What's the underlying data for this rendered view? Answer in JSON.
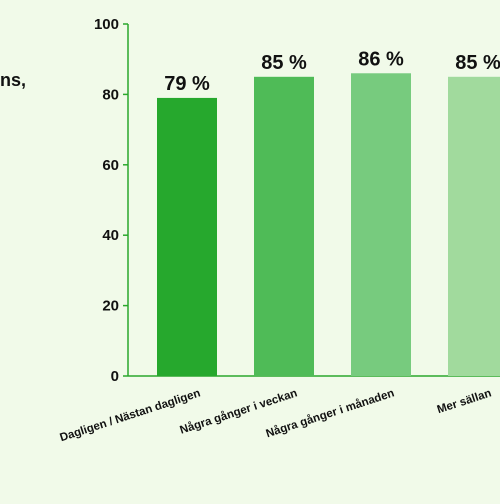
{
  "fragment_text": "ns,",
  "colors": {
    "background": "#f1fae9",
    "axis": "#2aa72c",
    "bars": [
      "#26a82d",
      "#4fbb57",
      "#77cb7e",
      "#a1da9d"
    ]
  },
  "chart_data": {
    "type": "bar",
    "categories": [
      "Dagligen / Nästan dagligen",
      "Några gånger i veckan",
      "Några gånger i månaden",
      "Mer sällan"
    ],
    "values": [
      79,
      85,
      86,
      85
    ],
    "value_labels": [
      "79 %",
      "85 %",
      "86 %",
      "85 %"
    ],
    "ylim": [
      0,
      100
    ],
    "yticks": [
      0,
      20,
      40,
      60,
      80,
      100
    ],
    "grid": false,
    "legend": "none"
  }
}
